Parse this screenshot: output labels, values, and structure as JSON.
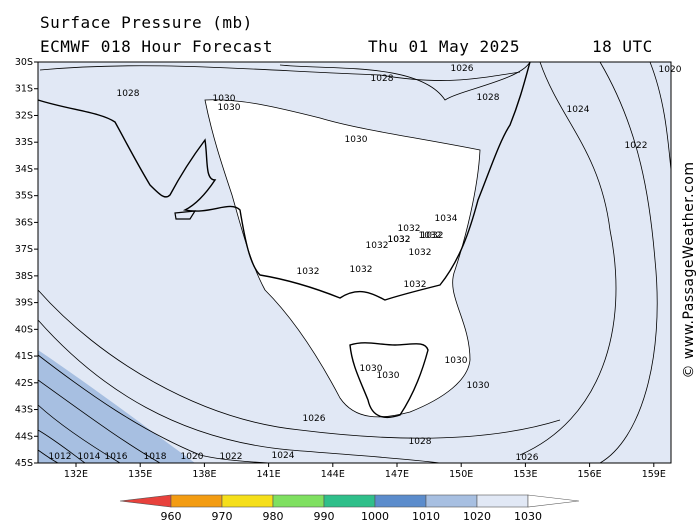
{
  "header": {
    "title": "Surface Pressure (mb)",
    "subtitle": "ECMWF 018 Hour Forecast",
    "date": "Thu 01 May 2025",
    "time": "18 UTC"
  },
  "lat_labels": [
    "30S",
    "31S",
    "32S",
    "33S",
    "34S",
    "35S",
    "36S",
    "37S",
    "38S",
    "39S",
    "40S",
    "41S",
    "42S",
    "43S",
    "44S",
    "45S"
  ],
  "lon_labels": [
    "132E",
    "135E",
    "138E",
    "141E",
    "144E",
    "147E",
    "150E",
    "153E",
    "156E",
    "159E"
  ],
  "isobar_labels": [
    1028,
    1030,
    1030,
    1028,
    1026,
    1028,
    1030,
    1024,
    1022,
    1020,
    1034,
    1032,
    1032,
    1032,
    1032,
    1032,
    1032,
    1032,
    1032,
    1032,
    1032,
    1030,
    1030,
    1030,
    1030,
    1028,
    1026,
    1024,
    1022,
    1020,
    1018,
    1016,
    1014,
    1012,
    1026
  ],
  "colorbar": {
    "ticks": [
      960,
      970,
      980,
      990,
      1000,
      1010,
      1020,
      1030
    ],
    "colors": [
      "#e8413c",
      "#f39c12",
      "#f5df1a",
      "#7fe060",
      "#2fbf8a",
      "#5b8ccc",
      "#a7bfe1",
      "#e1e8f5",
      "#ffffff"
    ]
  },
  "watermark": "© www.PassageWeather.com"
}
